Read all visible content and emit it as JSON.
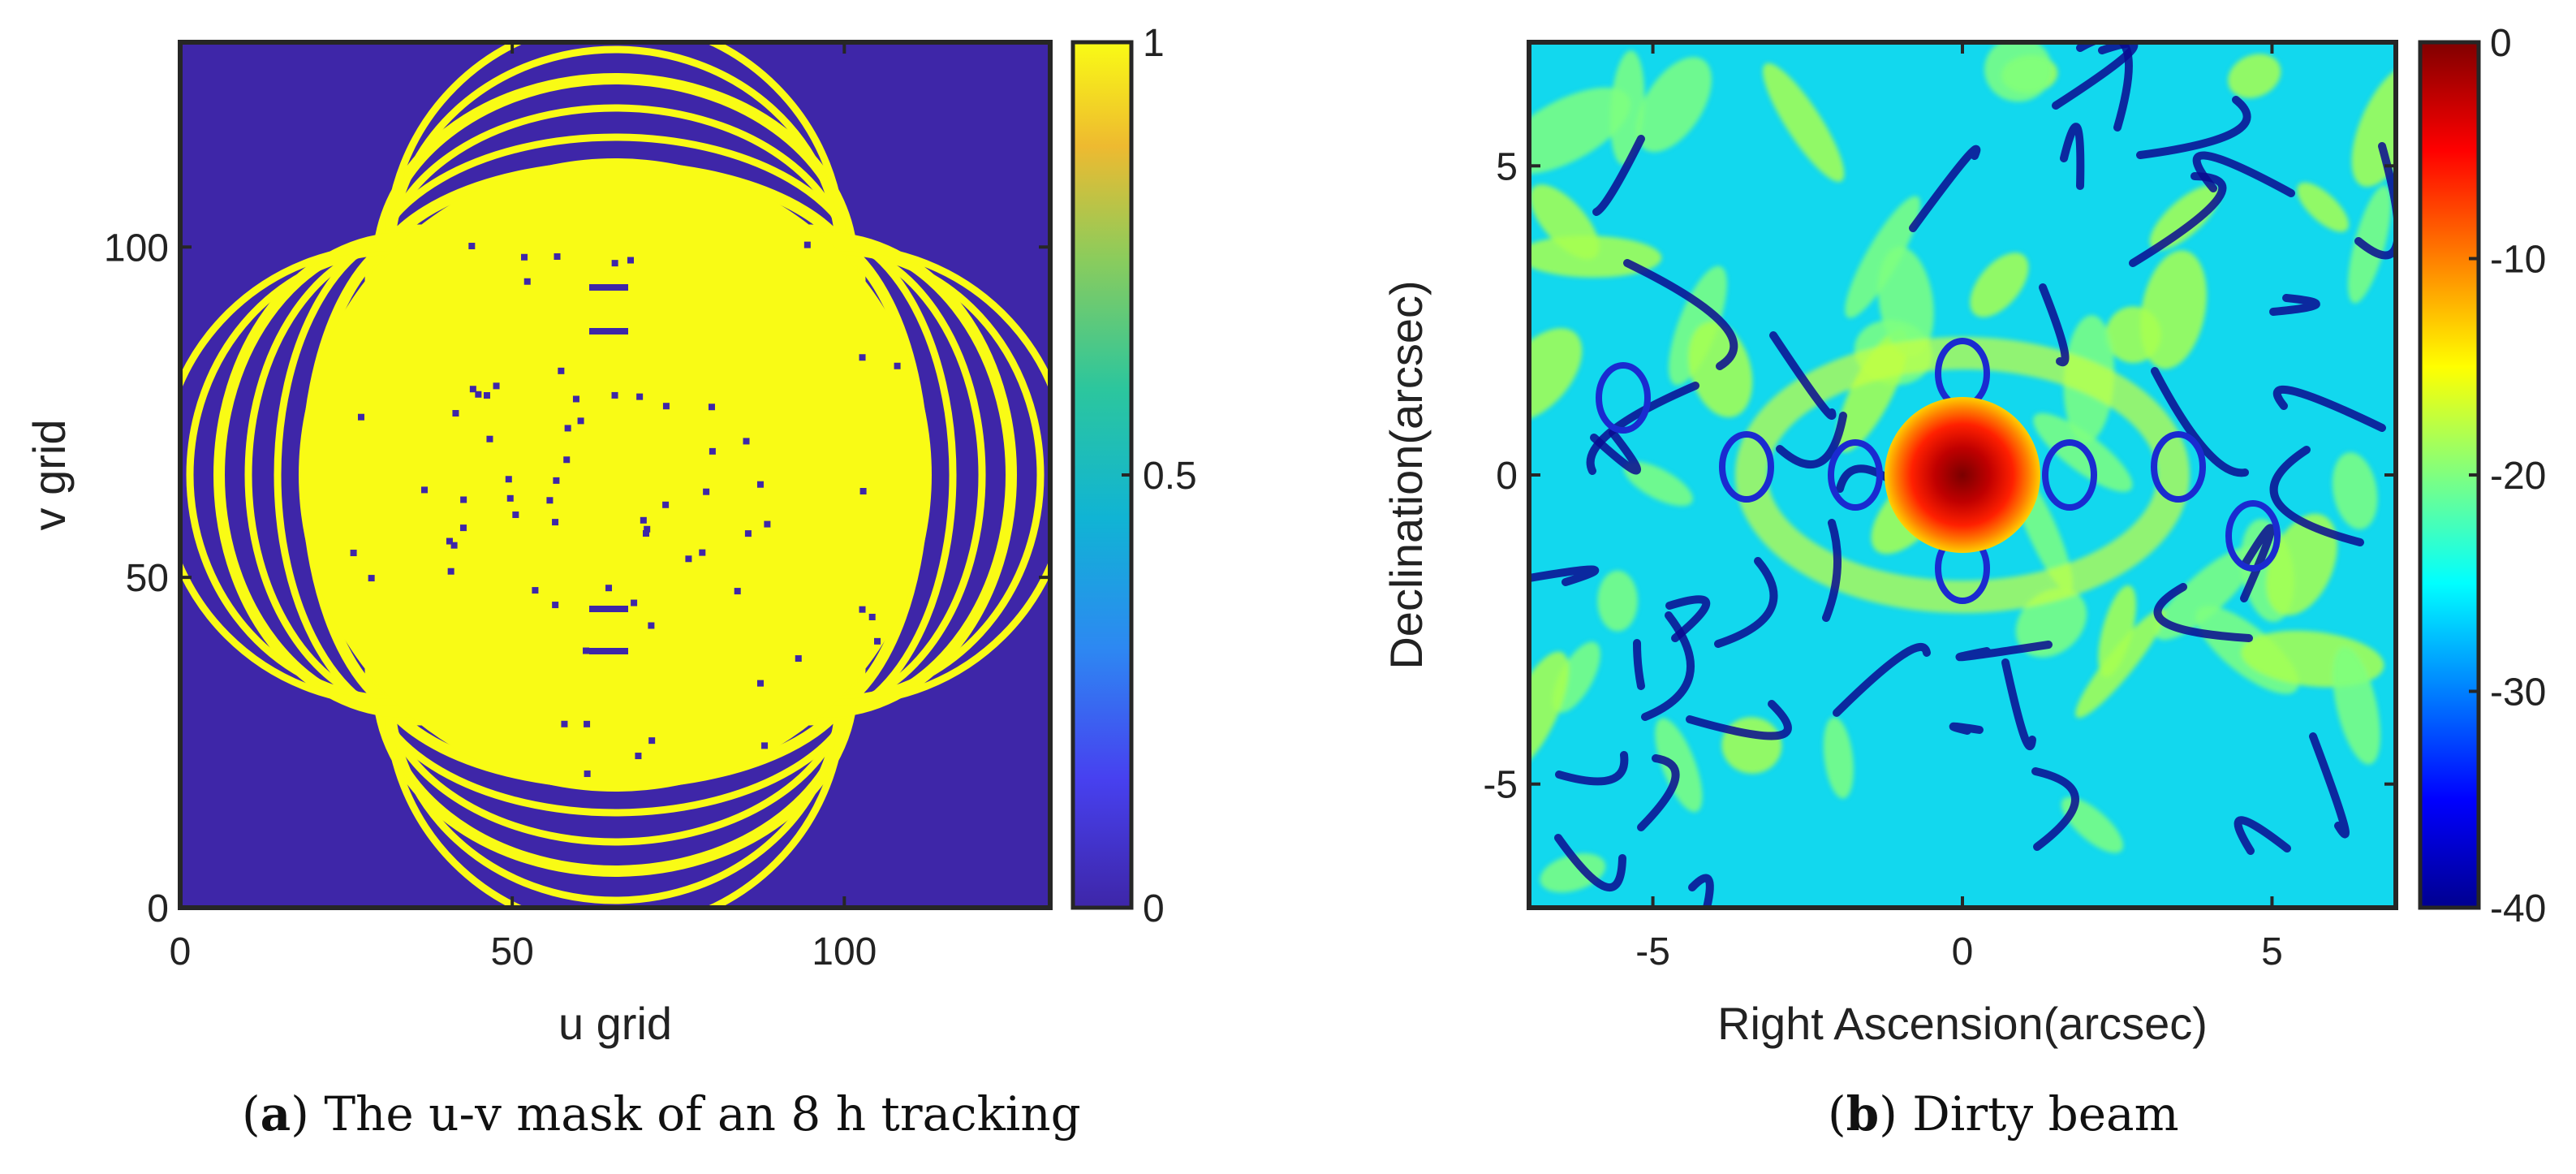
{
  "chart_data": [
    {
      "type": "heatmap",
      "panel": "a",
      "title": "",
      "xlabel": "u grid",
      "ylabel": "v grid",
      "xlim": [
        0,
        131
      ],
      "ylim": [
        0,
        131
      ],
      "xticks": [
        0,
        50,
        100
      ],
      "yticks": [
        0,
        50,
        100
      ],
      "colorbar": {
        "range": [
          0,
          1
        ],
        "ticks": [
          0,
          0.5,
          1
        ],
        "tick_labels": [
          "0",
          "0.5",
          "1"
        ],
        "colormap": "parula"
      },
      "values": "binary mask: 1 inside central disc (radius ~48) and on concentric arc bands extending to radius ~64; 0 elsewhere",
      "caption": {
        "label": "a",
        "text": "The u-v mask of an 8 h tracking"
      }
    },
    {
      "type": "heatmap",
      "panel": "b",
      "title": "",
      "xlabel": "Right Ascension(arcsec)",
      "ylabel": "Declination(arcsec)",
      "xlim": [
        -7,
        7
      ],
      "ylim": [
        -7,
        7
      ],
      "xticks": [
        -5,
        0,
        5
      ],
      "yticks": [
        -5,
        0,
        5
      ],
      "colorbar": {
        "range": [
          -40,
          0
        ],
        "ticks": [
          0,
          -10,
          -20,
          -30,
          -40
        ],
        "tick_labels": [
          "0",
          "-10",
          "-20",
          "-30",
          "-40"
        ],
        "colormap": "jet"
      },
      "values": "dirty beam in dB: peak 0 at origin (main lobe radius ~1.2 arcsec), sidelobes mostly between -20 and -30, nulls near -40",
      "caption": {
        "label": "b",
        "text": "Dirty beam"
      }
    }
  ],
  "colors": {
    "parula_low": "#3e26a8",
    "parula_high": "#f9fb15",
    "jet_low": "#00008f",
    "jet_high": "#800000",
    "frame": "#262626"
  }
}
